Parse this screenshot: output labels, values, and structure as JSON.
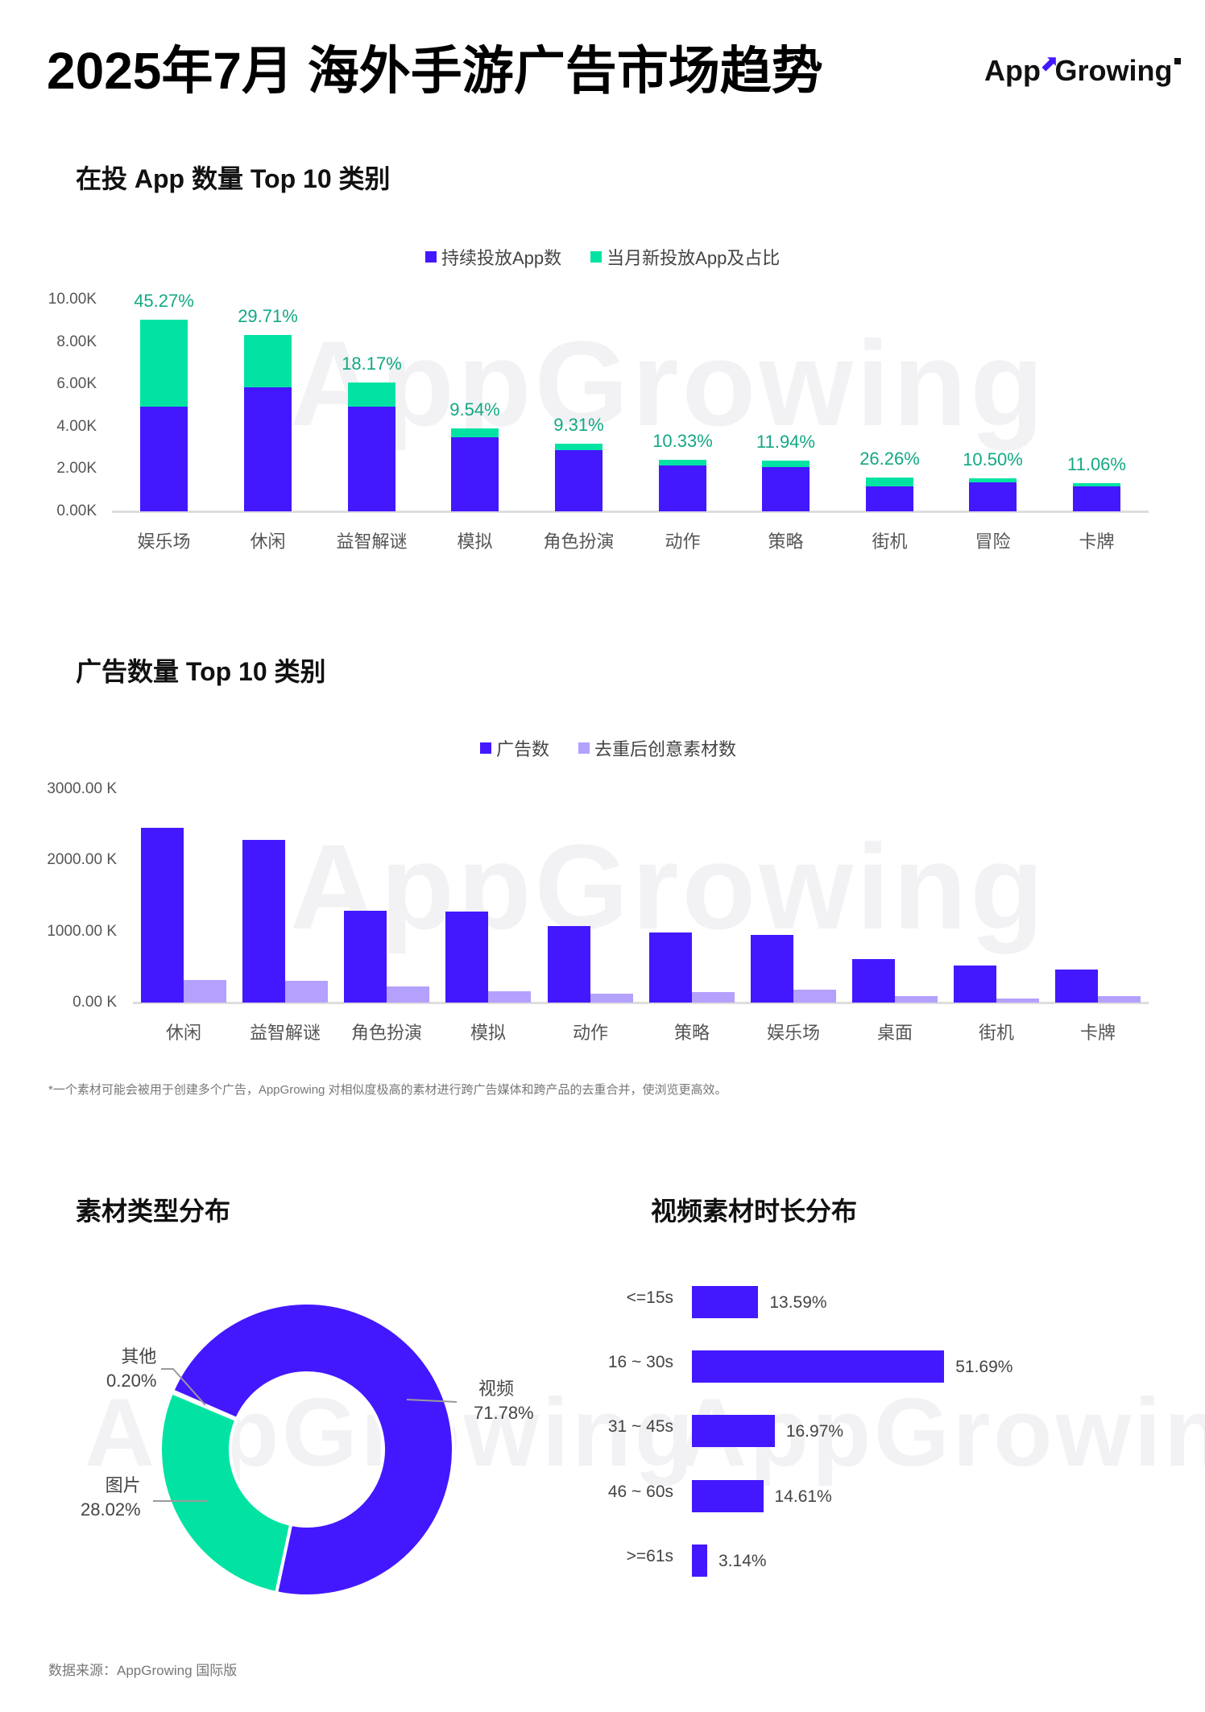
{
  "header": {
    "title": "2025年7月 海外手游广告市场趋势",
    "logo_text_left": "App",
    "logo_text_right": "Growing"
  },
  "watermark": "AppGrowing",
  "section1": {
    "title": "在投 App 数量 Top 10 类别",
    "legend": [
      "持续投放App数",
      "当月新投放App及占比"
    ]
  },
  "section2": {
    "title": "广告数量 Top 10 类别",
    "legend": [
      "广告数",
      "去重后创意素材数"
    ],
    "footnote": "*一个素材可能会被用于创建多个广告，AppGrowing 对相似度极高的素材进行跨广告媒体和跨产品的去重合并，使浏览更高效。"
  },
  "section3": {
    "title": "素材类型分布"
  },
  "section4": {
    "title": "视频素材时长分布"
  },
  "footer": {
    "source": "数据来源：AppGrowing 国际版"
  },
  "colors": {
    "primary": "#4318ff",
    "green": "#02e3a3",
    "lavender": "#b4a0fd",
    "pct_text": "#12a884"
  },
  "chart_data": [
    {
      "type": "bar",
      "stacked": true,
      "title": "在投 App 数量 Top 10 类别",
      "categories": [
        "娱乐场",
        "休闲",
        "益智解谜",
        "模拟",
        "角色扮演",
        "动作",
        "策略",
        "街机",
        "冒险",
        "卡牌"
      ],
      "series": [
        {
          "name": "持续投放App数",
          "color": "#4318ff",
          "values": [
            4.94,
            5.85,
            4.96,
            3.51,
            2.89,
            2.17,
            2.09,
            1.18,
            1.37,
            1.18
          ]
        },
        {
          "name": "当月新投放App及占比",
          "color": "#02e3a3",
          "values": [
            4.1,
            2.48,
            1.12,
            0.41,
            0.3,
            0.26,
            0.31,
            0.42,
            0.19,
            0.15
          ]
        }
      ],
      "annotations": [
        "45.27%",
        "29.71%",
        "18.17%",
        "9.54%",
        "9.31%",
        "10.33%",
        "11.94%",
        "26.26%",
        "10.50%",
        "11.06%"
      ],
      "yticks": [
        "0.00K",
        "2.00K",
        "4.00K",
        "6.00K",
        "8.00K",
        "10.00K"
      ],
      "ylim": [
        0,
        10
      ],
      "yunit": "K",
      "legend_position": "top"
    },
    {
      "type": "bar",
      "stacked": false,
      "title": "广告数量 Top 10 类别",
      "categories": [
        "休闲",
        "益智解谜",
        "角色扮演",
        "模拟",
        "动作",
        "策略",
        "娱乐场",
        "桌面",
        "街机",
        "卡牌"
      ],
      "series": [
        {
          "name": "广告数",
          "color": "#4318ff",
          "values": [
            2457,
            2287,
            1291,
            1280,
            1076,
            985,
            951,
            611,
            521,
            464
          ]
        },
        {
          "name": "去重后创意素材数",
          "color": "#b4a0fd",
          "values": [
            317,
            306,
            226,
            159,
            125,
            147,
            181,
            91,
            57,
            91
          ]
        }
      ],
      "yticks": [
        "0.00 K",
        "1000.00 K",
        "2000.00 K",
        "3000.00 K"
      ],
      "ylim": [
        0,
        3000
      ],
      "yunit": "K",
      "legend_position": "top"
    },
    {
      "type": "pie",
      "donut": true,
      "title": "素材类型分布",
      "labels": [
        "视频",
        "图片",
        "其他"
      ],
      "values": [
        71.78,
        28.02,
        0.2
      ],
      "display": [
        "71.78%",
        "28.02%",
        "0.20%"
      ],
      "colors": [
        "#4318ff",
        "#02e3a3",
        "#4318ff"
      ]
    },
    {
      "type": "bar",
      "orientation": "horizontal",
      "title": "视频素材时长分布",
      "categories": [
        "<=15s",
        "16 ~ 30s",
        "31 ~ 45s",
        "46 ~ 60s",
        ">=61s"
      ],
      "values": [
        13.59,
        51.69,
        16.97,
        14.61,
        3.14
      ],
      "display": [
        "13.59%",
        "51.69%",
        "16.97%",
        "14.61%",
        "3.14%"
      ],
      "color": "#4318ff"
    }
  ]
}
